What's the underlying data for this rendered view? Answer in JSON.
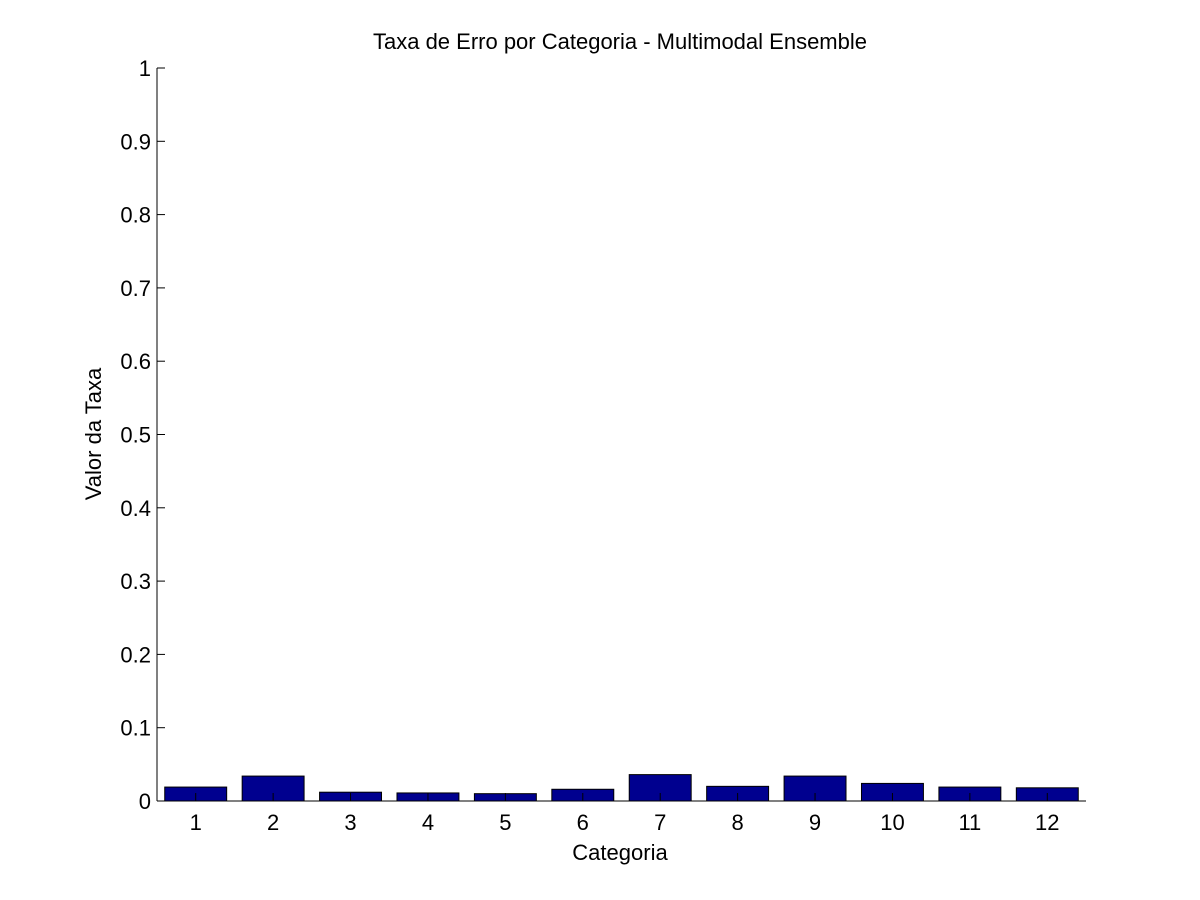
{
  "chart_data": {
    "type": "bar",
    "title": "Taxa de Erro por Categoria - Multimodal Ensemble",
    "xlabel": "Categoria",
    "ylabel": "Valor da Taxa",
    "categories": [
      "1",
      "2",
      "3",
      "4",
      "5",
      "6",
      "7",
      "8",
      "9",
      "10",
      "11",
      "12"
    ],
    "values": [
      0.019,
      0.034,
      0.012,
      0.011,
      0.01,
      0.016,
      0.036,
      0.02,
      0.034,
      0.024,
      0.019,
      0.018
    ],
    "ylim": [
      0,
      1
    ],
    "yticks": [
      0,
      0.1,
      0.2,
      0.3,
      0.4,
      0.5,
      0.6,
      0.7,
      0.8,
      0.9,
      1
    ],
    "ytick_labels": [
      "0",
      "0.1",
      "0.2",
      "0.3",
      "0.4",
      "0.5",
      "0.6",
      "0.7",
      "0.8",
      "0.9",
      "1"
    ],
    "bar_color": "#00008f",
    "grid": false,
    "legend": false
  }
}
